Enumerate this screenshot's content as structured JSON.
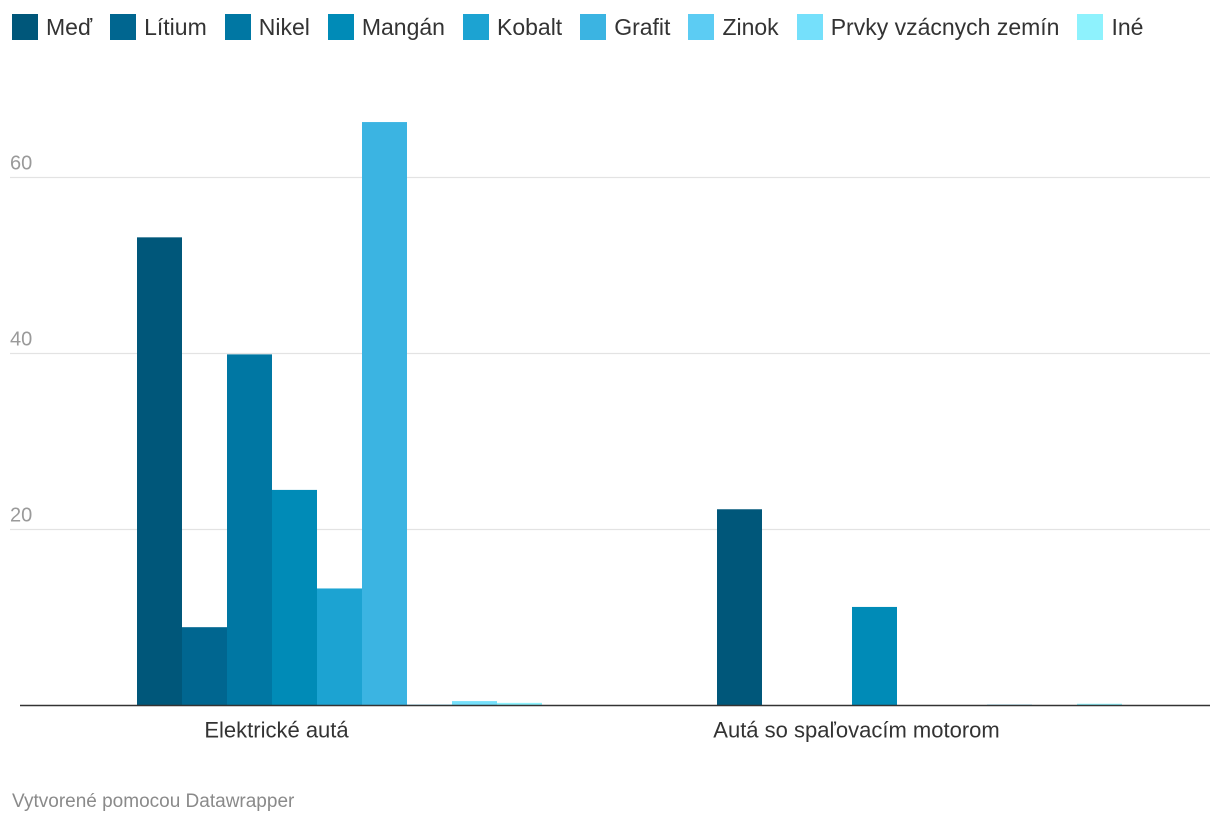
{
  "chart_data": {
    "type": "bar",
    "categories": [
      "Elektrické autá",
      "Autá so spaľovacím motorom"
    ],
    "series": [
      {
        "name": "Meď",
        "color": "#00577a",
        "values": [
          53.2,
          22.3
        ]
      },
      {
        "name": "Lítium",
        "color": "#006690",
        "values": [
          8.9,
          0
        ]
      },
      {
        "name": "Nikel",
        "color": "#0077a3",
        "values": [
          39.9,
          0
        ]
      },
      {
        "name": "Mangán",
        "color": "#008bb7",
        "values": [
          24.5,
          11.2
        ]
      },
      {
        "name": "Kobalt",
        "color": "#1ca3d2",
        "values": [
          13.3,
          0
        ]
      },
      {
        "name": "Grafit",
        "color": "#3bb4e2",
        "values": [
          66.3,
          0
        ]
      },
      {
        "name": "Zinok",
        "color": "#5cccf3",
        "values": [
          0.1,
          0.1
        ]
      },
      {
        "name": "Prvky vzácnych zemín",
        "color": "#75e0fb",
        "values": [
          0.5,
          0
        ]
      },
      {
        "name": "Iné",
        "color": "#8ef2fd",
        "values": [
          0.3,
          0.2
        ]
      }
    ],
    "yticks": [
      20,
      40,
      60
    ],
    "ylim": [
      0,
      70
    ],
    "grid": true,
    "legend_position": "top-left"
  },
  "footer": {
    "credit": "Vytvorené pomocou Datawrapper"
  }
}
